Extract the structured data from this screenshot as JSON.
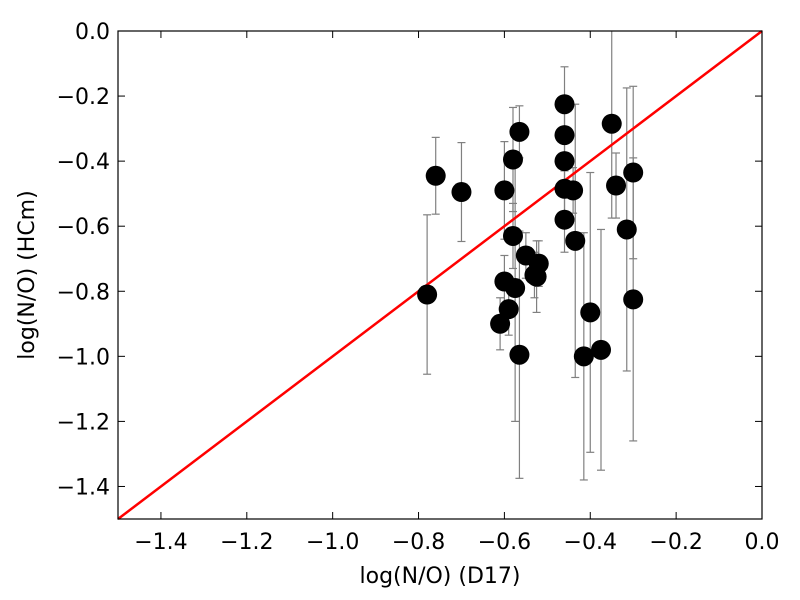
{
  "chart_data": {
    "type": "scatter",
    "title": "",
    "xlabel": "log(N/O) (D17)",
    "ylabel": "log(N/O) (HCm)",
    "xlim": [
      -1.5,
      0.0
    ],
    "ylim": [
      -1.5,
      0.0
    ],
    "xticks": [
      -1.4,
      -1.2,
      -1.0,
      -0.8,
      -0.6,
      -0.4,
      -0.2,
      0.0
    ],
    "yticks": [
      0.0,
      -0.2,
      -0.4,
      -0.6,
      -0.8,
      -1.0,
      -1.2,
      -1.4
    ],
    "xtick_labels": [
      "−1.4",
      "−1.2",
      "−1.0",
      "−0.8",
      "−0.6",
      "−0.4",
      "−0.2",
      "0.0"
    ],
    "ytick_labels": [
      "0.0",
      "−0.2",
      "−0.4",
      "−0.6",
      "−0.8",
      "−1.0",
      "−1.2",
      "−1.4"
    ],
    "grid": false,
    "legend": "none",
    "marker_color": "#000000",
    "errorbar_color": "#808080",
    "line_color": "#ff0000",
    "reference_line": {
      "x": [
        -1.5,
        0.0
      ],
      "y": [
        -1.5,
        0.0
      ]
    },
    "points": [
      {
        "x": -0.78,
        "y": -0.81,
        "y_err": 0.245
      },
      {
        "x": -0.76,
        "y": -0.445,
        "y_err": 0.118
      },
      {
        "x": -0.7,
        "y": -0.495,
        "y_err": 0.152
      },
      {
        "x": -0.61,
        "y": -0.9,
        "y_err": 0.08
      },
      {
        "x": -0.6,
        "y": -0.77,
        "y_err": 0.08
      },
      {
        "x": -0.6,
        "y": -0.49,
        "y_err": 0.15
      },
      {
        "x": -0.59,
        "y": -0.855,
        "y_err": 0.08
      },
      {
        "x": -0.58,
        "y": -0.395,
        "y_err": 0.16
      },
      {
        "x": -0.58,
        "y": -0.63,
        "y_err": 0.1
      },
      {
        "x": -0.575,
        "y": -0.79,
        "y_err": 0.41
      },
      {
        "x": -0.565,
        "y": -0.31,
        "y_err": 0.08
      },
      {
        "x": -0.565,
        "y": -0.995,
        "y_err": 0.38
      },
      {
        "x": -0.55,
        "y": -0.69,
        "y_err": 0.07
      },
      {
        "x": -0.53,
        "y": -0.75,
        "y_err": 0.07
      },
      {
        "x": -0.525,
        "y": -0.755,
        "y_err": 0.11
      },
      {
        "x": -0.52,
        "y": -0.715,
        "y_err": 0.07
      },
      {
        "x": -0.46,
        "y": -0.225,
        "y_err": 0.115
      },
      {
        "x": -0.46,
        "y": -0.32,
        "y_err": 0.11
      },
      {
        "x": -0.46,
        "y": -0.4,
        "y_err": 0.1
      },
      {
        "x": -0.46,
        "y": -0.485,
        "y_err": 0.1
      },
      {
        "x": -0.46,
        "y": -0.58,
        "y_err": 0.1
      },
      {
        "x": -0.44,
        "y": -0.49,
        "y_err": 0.07
      },
      {
        "x": -0.435,
        "y": -0.645,
        "y_err": 0.42
      },
      {
        "x": -0.415,
        "y": -1.0,
        "y_err": 0.38
      },
      {
        "x": -0.4,
        "y": -0.865,
        "y_err": 0.43
      },
      {
        "x": -0.375,
        "y": -0.98,
        "y_err": 0.37
      },
      {
        "x": -0.35,
        "y": -0.285,
        "y_err": 0.29
      },
      {
        "x": -0.34,
        "y": -0.475,
        "y_err": 0.1
      },
      {
        "x": -0.315,
        "y": -0.61,
        "y_err": 0.435
      },
      {
        "x": -0.3,
        "y": -0.435,
        "y_err": 0.265
      },
      {
        "x": -0.3,
        "y": -0.825,
        "y_err": 0.435
      }
    ]
  }
}
